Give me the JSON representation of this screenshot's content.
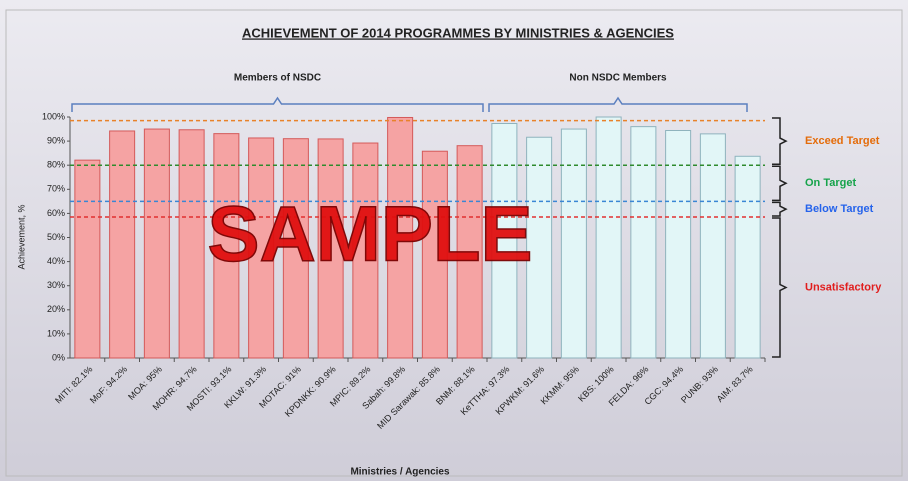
{
  "chart_data": {
    "type": "bar",
    "title": "ACHIEVEMENT OF 2014 PROGRAMMES BY MINISTRIES & AGENCIES",
    "x_label": "Ministries / Agencies",
    "y_label": "Achievement, %",
    "watermark": "SAMPLE",
    "categories": [
      "MITI: 82.1%",
      "MoF: 94.2%",
      "MOA: 95%",
      "MOHR: 94.7%",
      "MOSTI: 93.1%",
      "KKLW: 91.3%",
      "MOTAC: 91%",
      "KPDNKK: 90.9%",
      "MPIC: 89.2%",
      "Sabah: 99.8%",
      "MID Sarawak: 85.8%",
      "BNM: 88.1%",
      "KeTTHA: 97.3%",
      "KPWKM: 91.6%",
      "KKMM: 95%",
      "KBS: 100%",
      "FELDA: 96%",
      "CGC: 94.4%",
      "PUNB: 93%",
      "AIM: 83.7%"
    ],
    "series": [
      {
        "name": "Members of NSDC",
        "color": "#f5a3a3",
        "values": [
          82.1,
          94.2,
          95,
          94.7,
          93.1,
          91.3,
          91,
          90.9,
          89.2,
          99.8,
          85.8,
          88.1,
          null,
          null,
          null,
          null,
          null,
          null,
          null,
          null
        ]
      },
      {
        "name": "Non NSDC Members",
        "color": "#e2f6f7",
        "values": [
          null,
          null,
          null,
          null,
          null,
          null,
          null,
          null,
          null,
          null,
          null,
          null,
          97.3,
          91.6,
          95,
          100,
          96,
          94.4,
          93,
          83.7
        ]
      }
    ],
    "ylim": [
      0,
      100
    ],
    "yticks": [
      {
        "value": 0,
        "label": "0%"
      },
      {
        "value": 10,
        "label": "10%"
      },
      {
        "value": 20,
        "label": "20%"
      },
      {
        "value": 30,
        "label": "30%"
      },
      {
        "value": 40,
        "label": "40%"
      },
      {
        "value": 50,
        "label": "50%"
      },
      {
        "value": 60,
        "label": "60%"
      },
      {
        "value": 70,
        "label": "70%"
      },
      {
        "value": 80,
        "label": "80%"
      },
      {
        "value": 90,
        "label": "90%"
      },
      {
        "value": 100,
        "label": "100%"
      }
    ],
    "reference_lines": [
      {
        "value": 98.5,
        "color": "#e8822a"
      },
      {
        "value": 80,
        "color": "#2e8b2e"
      },
      {
        "value": 65,
        "color": "#3a86d4"
      },
      {
        "value": 58.5,
        "color": "#e23030"
      }
    ],
    "bands": [
      {
        "label": "Exceed Target",
        "from": 80,
        "to": 100,
        "color": "#e46c0a"
      },
      {
        "label": "On Target",
        "from": 65,
        "to": 80,
        "color": "#16a34a"
      },
      {
        "label": "Below Target",
        "from": 58.5,
        "to": 65,
        "color": "#2563eb"
      },
      {
        "label": "Unsatisfactory",
        "from": 0,
        "to": 58.5,
        "color": "#e11d1d"
      }
    ]
  }
}
